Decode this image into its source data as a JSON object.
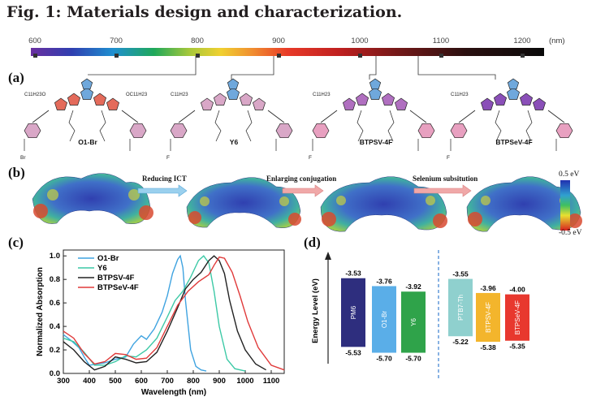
{
  "figure": {
    "title": "Fig. 1: Materials design and characterization."
  },
  "spectrum_bar": {
    "ticks": [
      "600",
      "700",
      "800",
      "900",
      "1000",
      "1100",
      "1200"
    ],
    "unit": "(nm)"
  },
  "panels": {
    "a": "(a)",
    "b": "(b)",
    "c": "(c)",
    "d": "(d)"
  },
  "molecules": [
    {
      "name": "O1-Br",
      "side_chain": "C11H23O",
      "side_chain_right": "OC11H23",
      "halogen": "Br"
    },
    {
      "name": "Y6",
      "side_chain": "C11H23",
      "halogen": "F"
    },
    {
      "name": "BTPSV-4F",
      "side_chain": "C11H23",
      "halogen": "F"
    },
    {
      "name": "BTPSeV-4F",
      "side_chain": "C11H23",
      "halogen": "F"
    }
  ],
  "panel_b": {
    "arrows": [
      "Reducing ICT",
      "Enlarging conjugation",
      "Selenium subsitution"
    ],
    "colorbar_top": "0.5 eV",
    "colorbar_bottom": "-0.5 eV"
  },
  "chart_data": [
    {
      "type": "line",
      "xlabel": "Wavelength (nm)",
      "ylabel": "Normalized Absorption",
      "xlim": [
        300,
        1150
      ],
      "ylim": [
        0,
        1.05
      ],
      "xticks": [
        "300",
        "400",
        "500",
        "600",
        "700",
        "800",
        "900",
        "1000",
        "1100"
      ],
      "yticks": [
        "0.0",
        "0.2",
        "0.4",
        "0.6",
        "0.8",
        "1.0"
      ],
      "legend_position": "top-left",
      "series": [
        {
          "name": "O1-Br",
          "color": "#3fa3e0",
          "x": [
            300,
            330,
            360,
            380,
            400,
            430,
            460,
            500,
            540,
            570,
            600,
            620,
            650,
            680,
            700,
            720,
            740,
            750,
            760,
            770,
            790,
            810,
            830,
            850
          ],
          "y": [
            0.33,
            0.28,
            0.22,
            0.14,
            0.07,
            0.08,
            0.09,
            0.12,
            0.14,
            0.25,
            0.32,
            0.29,
            0.38,
            0.52,
            0.66,
            0.85,
            0.97,
            1.0,
            0.9,
            0.62,
            0.2,
            0.06,
            0.03,
            0.02
          ]
        },
        {
          "name": "Y6",
          "color": "#3cc9a6",
          "x": [
            300,
            340,
            380,
            420,
            460,
            500,
            540,
            580,
            620,
            660,
            700,
            730,
            760,
            790,
            820,
            840,
            860,
            880,
            900,
            930,
            960,
            1000
          ],
          "y": [
            0.3,
            0.27,
            0.18,
            0.07,
            0.07,
            0.1,
            0.15,
            0.14,
            0.2,
            0.3,
            0.48,
            0.62,
            0.7,
            0.82,
            0.96,
            1.0,
            0.94,
            0.7,
            0.4,
            0.12,
            0.04,
            0.02
          ]
        },
        {
          "name": "BTPSV-4F",
          "color": "#222222",
          "x": [
            300,
            340,
            380,
            420,
            460,
            500,
            540,
            580,
            620,
            660,
            700,
            740,
            770,
            800,
            830,
            860,
            880,
            900,
            920,
            940,
            970,
            1000,
            1040,
            1080
          ],
          "y": [
            0.27,
            0.2,
            0.1,
            0.03,
            0.06,
            0.14,
            0.12,
            0.09,
            0.1,
            0.18,
            0.36,
            0.56,
            0.72,
            0.8,
            0.86,
            0.96,
            1.0,
            0.96,
            0.85,
            0.62,
            0.36,
            0.2,
            0.08,
            0.03
          ]
        },
        {
          "name": "BTPSeV-4F",
          "color": "#e03a3a",
          "x": [
            300,
            340,
            380,
            420,
            460,
            500,
            540,
            580,
            620,
            660,
            700,
            740,
            780,
            820,
            860,
            880,
            900,
            920,
            950,
            980,
            1010,
            1050,
            1100,
            1150
          ],
          "y": [
            0.36,
            0.3,
            0.17,
            0.08,
            0.1,
            0.17,
            0.16,
            0.12,
            0.13,
            0.22,
            0.4,
            0.58,
            0.7,
            0.78,
            0.84,
            0.92,
            0.99,
            0.98,
            0.86,
            0.66,
            0.44,
            0.22,
            0.07,
            0.03
          ]
        }
      ]
    },
    {
      "type": "bar",
      "ylabel": "Energy Level (eV)",
      "categories": [
        "PM6",
        "O1-Br",
        "Y6",
        "PTB7-Th",
        "BTPSV-4F",
        "BTPSeV-4F"
      ],
      "lumo": [
        -3.53,
        -3.76,
        -3.92,
        -3.55,
        -3.96,
        -4.0
      ],
      "homo": [
        -5.53,
        -5.7,
        -5.7,
        -5.22,
        -5.38,
        -5.35
      ],
      "lumo_labels": [
        "-3.53",
        "-3.76",
        "-3.92",
        "-3.55",
        "-3.96",
        "-4.00"
      ],
      "homo_labels": [
        "-5.53",
        "-5.70",
        "-5.70",
        "-5.22",
        "-5.38",
        "-5.35"
      ],
      "colors": [
        "#2e2e7e",
        "#5aaee8",
        "#2fa34a",
        "#8fd0ce",
        "#f3b52c",
        "#e8382e"
      ],
      "groups": [
        [
          "PM6",
          "O1-Br",
          "Y6"
        ],
        [
          "PTB7-Th",
          "BTPSV-4F",
          "BTPSeV-4F"
        ]
      ]
    }
  ]
}
